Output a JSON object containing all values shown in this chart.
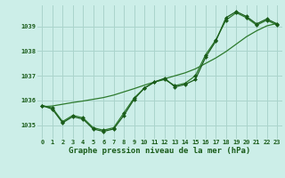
{
  "title": "Graphe pression niveau de la mer (hPa)",
  "bg_color": "#cceee8",
  "grid_color": "#aad4cc",
  "line_color_dark": "#1a5c1a",
  "line_color_mid": "#2d7a2d",
  "x_values": [
    0,
    1,
    2,
    3,
    4,
    5,
    6,
    7,
    8,
    9,
    10,
    11,
    12,
    13,
    14,
    15,
    16,
    17,
    18,
    19,
    20,
    21,
    22,
    23
  ],
  "y_main": [
    1035.8,
    1035.65,
    1035.1,
    1035.35,
    1035.25,
    1034.85,
    1034.75,
    1034.85,
    1035.4,
    1036.05,
    1036.5,
    1036.75,
    1036.9,
    1036.55,
    1036.65,
    1036.85,
    1037.75,
    1038.4,
    1039.35,
    1039.6,
    1039.4,
    1039.1,
    1039.3,
    1039.1
  ],
  "y_smooth": [
    1035.8,
    1035.7,
    1035.15,
    1035.4,
    1035.3,
    1034.9,
    1034.8,
    1034.9,
    1035.5,
    1036.1,
    1036.5,
    1036.75,
    1036.85,
    1036.6,
    1036.7,
    1037.0,
    1037.85,
    1038.45,
    1039.25,
    1039.55,
    1039.35,
    1039.05,
    1039.25,
    1039.05
  ],
  "y_trend": [
    1035.75,
    1035.78,
    1035.85,
    1035.92,
    1035.98,
    1036.05,
    1036.12,
    1036.22,
    1036.35,
    1036.48,
    1036.62,
    1036.75,
    1036.88,
    1037.0,
    1037.12,
    1037.28,
    1037.5,
    1037.72,
    1037.98,
    1038.28,
    1038.58,
    1038.82,
    1039.02,
    1039.12
  ],
  "ylim": [
    1034.45,
    1039.85
  ],
  "yticks": [
    1035,
    1036,
    1037,
    1038,
    1039
  ],
  "xlim": [
    -0.5,
    23.5
  ],
  "xticks": [
    0,
    1,
    2,
    3,
    4,
    5,
    6,
    7,
    8,
    9,
    10,
    11,
    12,
    13,
    14,
    15,
    16,
    17,
    18,
    19,
    20,
    21,
    22,
    23
  ],
  "marker": "D",
  "marker_size": 2.0,
  "line_width": 0.9,
  "tick_fontsize": 5.0,
  "xlabel_fontsize": 6.5
}
